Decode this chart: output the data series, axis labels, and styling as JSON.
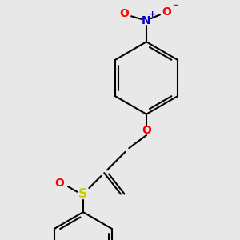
{
  "bg_color": "#e8e8e8",
  "bond_color": "#000000",
  "bond_width": 1.5,
  "atom_colors": {
    "O": "#ff0000",
    "N": "#0000cd",
    "S": "#cccc00"
  },
  "font_size": 10,
  "font_size_small": 7
}
